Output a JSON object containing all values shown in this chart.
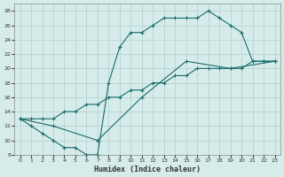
{
  "xlabel": "Humidex (Indice chaleur)",
  "bg_color": "#d6ecea",
  "grid_color": "#aecece",
  "line_color": "#1a6b6b",
  "xlim": [
    -0.5,
    23.5
  ],
  "ylim": [
    8,
    29
  ],
  "xticks": [
    0,
    1,
    2,
    3,
    4,
    5,
    6,
    7,
    8,
    9,
    10,
    11,
    12,
    13,
    14,
    15,
    16,
    17,
    18,
    19,
    20,
    21,
    22,
    23
  ],
  "yticks": [
    8,
    10,
    12,
    14,
    16,
    18,
    20,
    22,
    24,
    26,
    28
  ],
  "line1_x": [
    0,
    1,
    2,
    3,
    4,
    5,
    6,
    7,
    8,
    9,
    10,
    11,
    12,
    13,
    14,
    15,
    16,
    17,
    18,
    19,
    20,
    21,
    22,
    23
  ],
  "line1_y": [
    13,
    12,
    11,
    10,
    9,
    9,
    8,
    8,
    18,
    23,
    25,
    25,
    26,
    27,
    27,
    27,
    27,
    28,
    27,
    26,
    25,
    21,
    21,
    21
  ],
  "line2_x": [
    0,
    3,
    7,
    11,
    15,
    19,
    23
  ],
  "line2_y": [
    13,
    12,
    10,
    16,
    21,
    20,
    21
  ],
  "line3_x": [
    0,
    1,
    2,
    3,
    4,
    5,
    6,
    7,
    8,
    9,
    10,
    11,
    12,
    13,
    14,
    15,
    16,
    17,
    18,
    19,
    20,
    21,
    22,
    23
  ],
  "line3_y": [
    13,
    13,
    13,
    13,
    14,
    14,
    15,
    15,
    16,
    16,
    17,
    17,
    18,
    18,
    19,
    19,
    20,
    20,
    20,
    20,
    20,
    21,
    21,
    21
  ]
}
